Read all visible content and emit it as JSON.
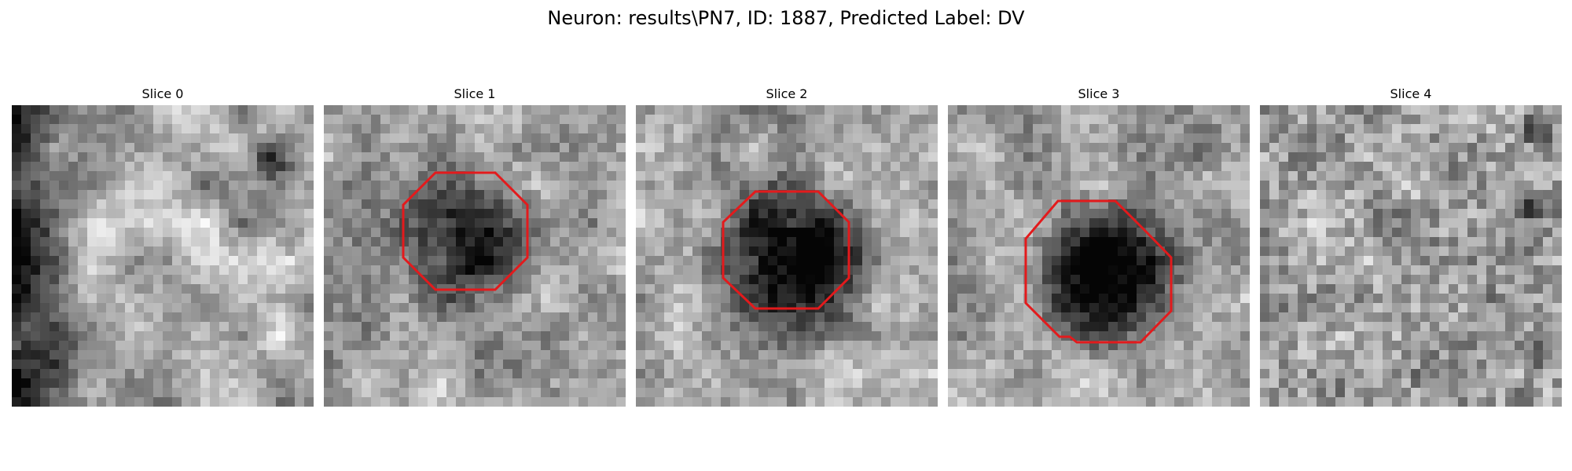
{
  "figure": {
    "title": "Neuron: results\\PN7, ID: 1887, Predicted Label: DV"
  },
  "panels": [
    {
      "title": "Slice 0",
      "has_contour": false
    },
    {
      "title": "Slice 1",
      "has_contour": true
    },
    {
      "title": "Slice 2",
      "has_contour": true
    },
    {
      "title": "Slice 3",
      "has_contour": true
    },
    {
      "title": "Slice 4",
      "has_contour": false
    }
  ],
  "colors": {
    "contour": "#e31a1c",
    "background": "#ffffff"
  }
}
